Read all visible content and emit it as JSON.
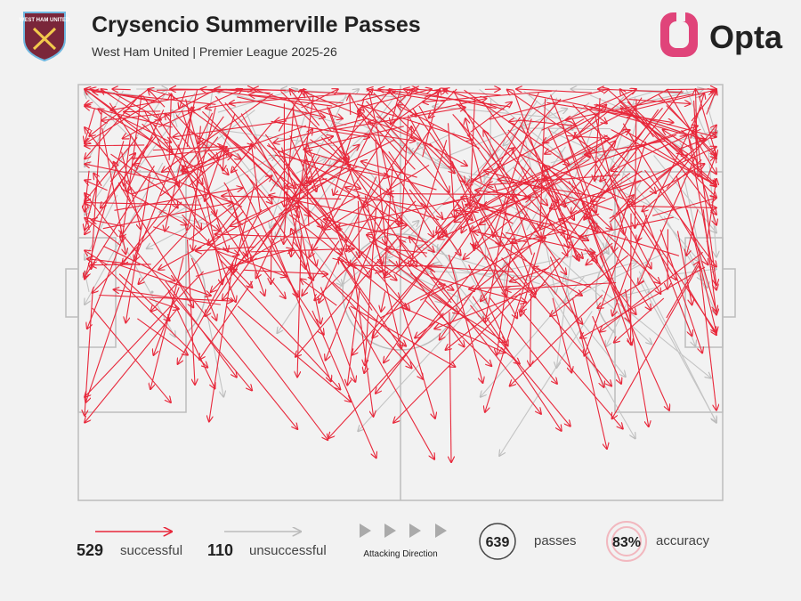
{
  "header": {
    "title": "Crysencio Summerville Passes",
    "subtitle": "West Ham United | Premier League 2025-26",
    "brand": "Opta",
    "badge": "WEST HAM UNITED"
  },
  "legend": {
    "successful": {
      "count": 529,
      "label": "successful"
    },
    "unsuccessful": {
      "count": 110,
      "label": "unsuccessful"
    },
    "direction": "Attacking Direction",
    "passes": {
      "count": 639,
      "label": "passes"
    },
    "accuracy": {
      "value": 83,
      "label": "83%",
      "text": "accuracy"
    }
  }
}
